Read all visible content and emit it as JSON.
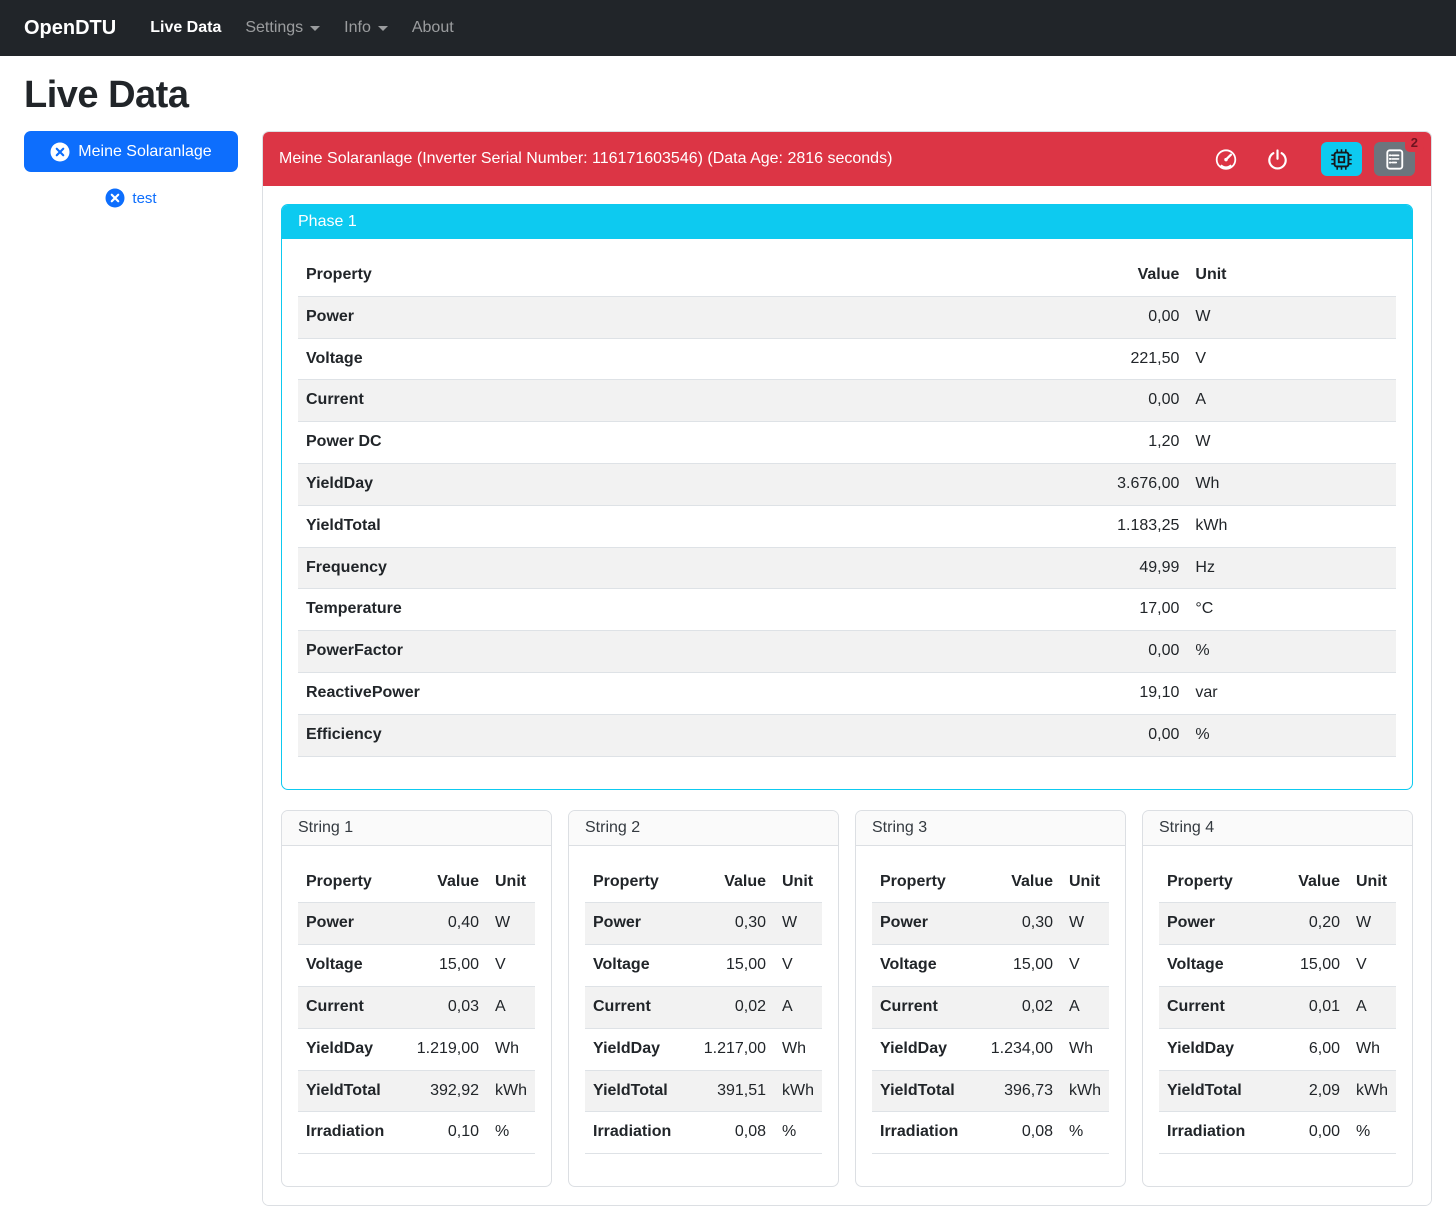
{
  "colors": {
    "primary": "#0d6efd",
    "danger": "#dc3545",
    "info": "#0dcaf0",
    "secondary": "#6c757d",
    "navbar_bg": "#212529",
    "stripe": "#f2f2f2",
    "border": "#dee2e6",
    "badge_text": "#6e1420"
  },
  "navbar": {
    "brand": "OpenDTU",
    "items": [
      {
        "name": "live-data",
        "label": "Live Data",
        "active": true,
        "dropdown": false
      },
      {
        "name": "settings",
        "label": "Settings",
        "active": false,
        "dropdown": true
      },
      {
        "name": "info",
        "label": "Info",
        "active": false,
        "dropdown": true
      },
      {
        "name": "about",
        "label": "About",
        "active": false,
        "dropdown": false
      }
    ]
  },
  "page_title": "Live Data",
  "sidebar": {
    "inverters": [
      {
        "name": "Meine Solaranlage",
        "selected": true
      },
      {
        "name": "test",
        "selected": false
      }
    ]
  },
  "inverter": {
    "header_text": "Meine Solaranlage (Inverter Serial Number: 116171603546) (Data Age: 2816 seconds)",
    "toolbar": {
      "icons": [
        "speedometer-icon",
        "power-icon",
        "cpu-icon",
        "journal-text-icon"
      ],
      "event_count": "2"
    }
  },
  "table_columns": {
    "property": "Property",
    "value": "Value",
    "unit": "Unit"
  },
  "phase": {
    "title": "Phase 1",
    "rows": [
      {
        "property": "Power",
        "value": "0,00",
        "unit": "W"
      },
      {
        "property": "Voltage",
        "value": "221,50",
        "unit": "V"
      },
      {
        "property": "Current",
        "value": "0,00",
        "unit": "A"
      },
      {
        "property": "Power DC",
        "value": "1,20",
        "unit": "W"
      },
      {
        "property": "YieldDay",
        "value": "3.676,00",
        "unit": "Wh"
      },
      {
        "property": "YieldTotal",
        "value": "1.183,25",
        "unit": "kWh"
      },
      {
        "property": "Frequency",
        "value": "49,99",
        "unit": "Hz"
      },
      {
        "property": "Temperature",
        "value": "17,00",
        "unit": "°C"
      },
      {
        "property": "PowerFactor",
        "value": "0,00",
        "unit": "%"
      },
      {
        "property": "ReactivePower",
        "value": "19,10",
        "unit": "var"
      },
      {
        "property": "Efficiency",
        "value": "0,00",
        "unit": "%"
      }
    ]
  },
  "strings": [
    {
      "title": "String 1",
      "rows": [
        {
          "property": "Power",
          "value": "0,40",
          "unit": "W"
        },
        {
          "property": "Voltage",
          "value": "15,00",
          "unit": "V"
        },
        {
          "property": "Current",
          "value": "0,03",
          "unit": "A"
        },
        {
          "property": "YieldDay",
          "value": "1.219,00",
          "unit": "Wh"
        },
        {
          "property": "YieldTotal",
          "value": "392,92",
          "unit": "kWh"
        },
        {
          "property": "Irradiation",
          "value": "0,10",
          "unit": "%"
        }
      ]
    },
    {
      "title": "String 2",
      "rows": [
        {
          "property": "Power",
          "value": "0,30",
          "unit": "W"
        },
        {
          "property": "Voltage",
          "value": "15,00",
          "unit": "V"
        },
        {
          "property": "Current",
          "value": "0,02",
          "unit": "A"
        },
        {
          "property": "YieldDay",
          "value": "1.217,00",
          "unit": "Wh"
        },
        {
          "property": "YieldTotal",
          "value": "391,51",
          "unit": "kWh"
        },
        {
          "property": "Irradiation",
          "value": "0,08",
          "unit": "%"
        }
      ]
    },
    {
      "title": "String 3",
      "rows": [
        {
          "property": "Power",
          "value": "0,30",
          "unit": "W"
        },
        {
          "property": "Voltage",
          "value": "15,00",
          "unit": "V"
        },
        {
          "property": "Current",
          "value": "0,02",
          "unit": "A"
        },
        {
          "property": "YieldDay",
          "value": "1.234,00",
          "unit": "Wh"
        },
        {
          "property": "YieldTotal",
          "value": "396,73",
          "unit": "kWh"
        },
        {
          "property": "Irradiation",
          "value": "0,08",
          "unit": "%"
        }
      ]
    },
    {
      "title": "String 4",
      "rows": [
        {
          "property": "Power",
          "value": "0,20",
          "unit": "W"
        },
        {
          "property": "Voltage",
          "value": "15,00",
          "unit": "V"
        },
        {
          "property": "Current",
          "value": "0,01",
          "unit": "A"
        },
        {
          "property": "YieldDay",
          "value": "6,00",
          "unit": "Wh"
        },
        {
          "property": "YieldTotal",
          "value": "2,09",
          "unit": "kWh"
        },
        {
          "property": "Irradiation",
          "value": "0,00",
          "unit": "%"
        }
      ]
    }
  ]
}
